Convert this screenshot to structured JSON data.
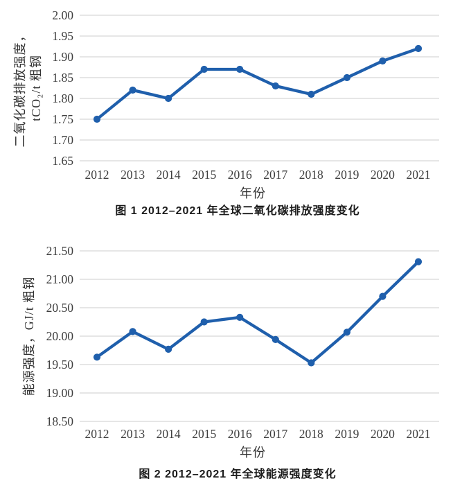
{
  "style": {
    "accent_color": "#1F5FAC",
    "grid_color": "#D8D8D8",
    "tick_text_color": "#3D3D3D",
    "caption_color": "#1B1B1B",
    "background": "#FFFFFF"
  },
  "chart_data": [
    {
      "type": "line",
      "name": "co2-emission-intensity",
      "caption": "图 1 2012–2021 年全球二氧化碳排放强度变化",
      "xlabel": "年份",
      "ylabel_lines": [
        "二氧化碳排放强度，",
        "tCO₂/t 粗钢"
      ],
      "categories": [
        "2012",
        "2013",
        "2014",
        "2015",
        "2016",
        "2017",
        "2018",
        "2019",
        "2020",
        "2021"
      ],
      "values": [
        1.75,
        1.82,
        1.8,
        1.87,
        1.87,
        1.83,
        1.81,
        1.85,
        1.89,
        1.92
      ],
      "ylim": [
        1.65,
        2.0
      ],
      "ystep": 0.05,
      "ytick_decimals": 2,
      "grid": true,
      "legend": "none",
      "line_color": "#1F5FAC",
      "marker": "circle"
    },
    {
      "type": "line",
      "name": "energy-intensity",
      "caption": "图 2 2012–2021 年全球能源强度变化",
      "xlabel": "年份",
      "ylabel_lines": [
        "能源强度，GJ/t 粗钢"
      ],
      "categories": [
        "2012",
        "2013",
        "2014",
        "2015",
        "2016",
        "2017",
        "2018",
        "2019",
        "2020",
        "2021"
      ],
      "values": [
        19.63,
        20.08,
        19.77,
        20.25,
        20.33,
        19.94,
        19.53,
        20.07,
        20.7,
        21.31
      ],
      "ylim": [
        18.5,
        21.5
      ],
      "ystep": 0.5,
      "ytick_decimals": 2,
      "grid": true,
      "legend": "none",
      "line_color": "#1F5FAC",
      "marker": "circle"
    }
  ]
}
